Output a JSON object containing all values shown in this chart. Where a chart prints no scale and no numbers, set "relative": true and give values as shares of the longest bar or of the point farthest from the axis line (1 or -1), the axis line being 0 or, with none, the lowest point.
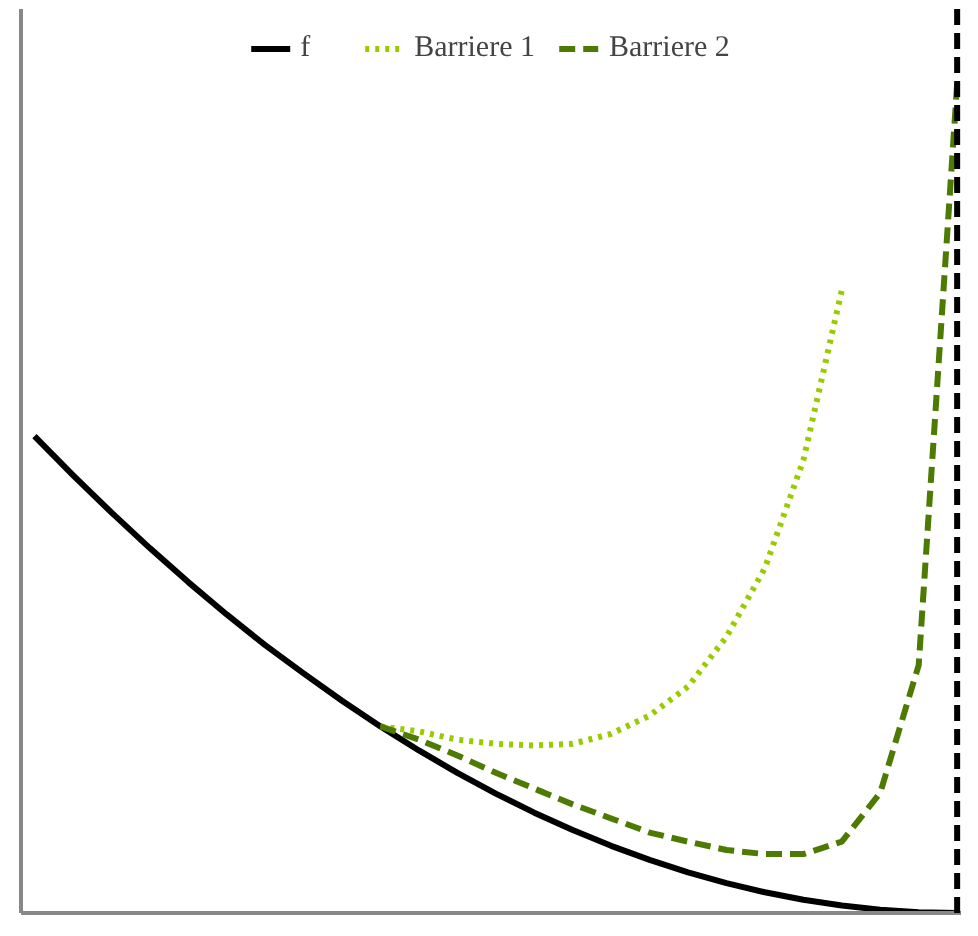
{
  "chart_data": {
    "type": "line",
    "relative": true,
    "categories": [
      null,
      null,
      null,
      null,
      null,
      null,
      null,
      null,
      null,
      null,
      null,
      null,
      null,
      null,
      null,
      null,
      null,
      null,
      null,
      null,
      null,
      null,
      null,
      null,
      null
    ],
    "series": [
      {
        "name": "f",
        "color": "#000000",
        "line_style": "solid",
        "values": [
          0.575,
          0.528,
          0.483,
          0.44,
          0.399,
          0.36,
          0.323,
          0.289,
          0.256,
          0.225,
          0.196,
          0.169,
          0.144,
          0.121,
          0.1,
          0.081,
          0.064,
          0.049,
          0.036,
          0.025,
          0.016,
          0.009,
          0.004,
          0.001,
          0
        ]
      },
      {
        "name": "Barriere 1",
        "color": "#99cc00",
        "line_style": "dotted",
        "values": [
          null,
          null,
          null,
          null,
          null,
          null,
          null,
          null,
          null,
          0.225,
          0.219,
          0.209,
          0.204,
          0.202,
          0.204,
          0.216,
          0.238,
          0.273,
          0.333,
          0.416,
          0.546,
          0.751,
          null,
          null,
          null
        ]
      },
      {
        "name": "Barriere 2",
        "color": "#4d7a00",
        "line_style": "dashed",
        "values": [
          null,
          null,
          null,
          null,
          null,
          null,
          null,
          null,
          null,
          0.225,
          0.209,
          0.19,
          0.169,
          0.15,
          0.131,
          0.114,
          0.097,
          0.086,
          0.076,
          0.071,
          0.071,
          0.086,
          0.145,
          0.299,
          1.0
        ]
      }
    ],
    "legend": "top",
    "grid": false,
    "marker": "none",
    "tick_labels": false
  }
}
